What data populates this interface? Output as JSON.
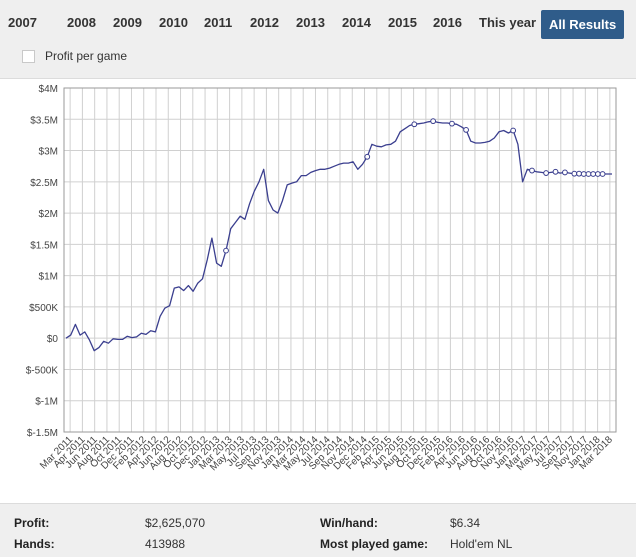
{
  "tabs": [
    {
      "label": "2007",
      "active": false
    },
    {
      "label": "2008",
      "active": false
    },
    {
      "label": "2009",
      "active": false
    },
    {
      "label": "2010",
      "active": false
    },
    {
      "label": "2011",
      "active": false
    },
    {
      "label": "2012",
      "active": false
    },
    {
      "label": "2013",
      "active": false
    },
    {
      "label": "2014",
      "active": false
    },
    {
      "label": "2015",
      "active": false
    },
    {
      "label": "2016",
      "active": false
    },
    {
      "label": "This year",
      "active": false
    },
    {
      "label": "All Results",
      "active": true
    }
  ],
  "profit_per_game": {
    "label": "Profit per game",
    "checked": false
  },
  "colors": {
    "accent": "#2f5c8a",
    "line": "#3b3f8f",
    "grid": "#d0d0d0"
  },
  "chart_data": {
    "type": "line",
    "title": "",
    "xlabel": "",
    "ylabel": "",
    "grid": true,
    "y_ticks": [
      -1500000,
      -1000000,
      -500000,
      0,
      500000,
      1000000,
      1500000,
      2000000,
      2500000,
      3000000,
      3500000,
      4000000
    ],
    "y_tick_labels": [
      "$-1.5M",
      "$-1M",
      "$-500K",
      "$0",
      "$500K",
      "$1M",
      "$1.5M",
      "$2M",
      "$2.5M",
      "$3M",
      "$3.5M",
      "$4M"
    ],
    "ylim": [
      -1500000,
      4000000
    ],
    "x_tick_labels": [
      "Mar 2011",
      "Apr 2011",
      "Jun 2011",
      "Aug 2011",
      "Oct 2011",
      "Dec 2011",
      "Feb 2012",
      "Apr 2012",
      "Jun 2012",
      "Aug 2012",
      "Oct 2012",
      "Dec 2012",
      "Jan 2013",
      "Mar 2013",
      "May 2013",
      "Jul 2013",
      "Sep 2013",
      "Nov 2013",
      "Jan 2014",
      "Mar 2014",
      "May 2014",
      "Jul 2014",
      "Sep 2014",
      "Nov 2014",
      "Dec 2014",
      "Feb 2015",
      "Apr 2015",
      "Jun 2015",
      "Aug 2015",
      "Oct 2015",
      "Dec 2015",
      "Feb 2016",
      "Apr 2016",
      "Jun 2016",
      "Aug 2016",
      "Oct 2016",
      "Nov 2016",
      "Jan 2017",
      "Mar 2017",
      "May 2017",
      "Jul 2017",
      "Sep 2017",
      "Nov 2017",
      "Jan 2018",
      "Mar 2018"
    ],
    "series": [
      {
        "values": [
          0,
          50000,
          220000,
          50000,
          100000,
          -30000,
          -200000,
          -150000,
          -50000,
          -80000,
          -10000,
          -20000,
          -20000,
          30000,
          10000,
          20000,
          80000,
          60000,
          120000,
          100000,
          350000,
          480000,
          520000,
          800000,
          820000,
          760000,
          840000,
          750000,
          880000,
          950000,
          1250000,
          1600000,
          1200000,
          1150000,
          1400000,
          1750000,
          1850000,
          1950000,
          1900000,
          2150000,
          2350000,
          2500000,
          2700000,
          2200000,
          2050000,
          2000000,
          2200000,
          2450000,
          2480000,
          2500000,
          2600000,
          2600000,
          2650000,
          2680000,
          2700000,
          2700000,
          2720000,
          2750000,
          2780000,
          2800000,
          2800000,
          2820000,
          2700000,
          2780000,
          2900000,
          3100000,
          3070000,
          3060000,
          3090000,
          3100000,
          3150000,
          3300000,
          3350000,
          3400000,
          3420000,
          3430000,
          3440000,
          3460000,
          3470000,
          3450000,
          3440000,
          3440000,
          3430000,
          3420000,
          3380000,
          3330000,
          3150000,
          3120000,
          3120000,
          3130000,
          3150000,
          3200000,
          3300000,
          3320000,
          3280000,
          3320000,
          3100000,
          2500000,
          2700000,
          2680000,
          2660000,
          2650000,
          2640000,
          2650000,
          2660000,
          2640000,
          2650000,
          2640000,
          2630000,
          2630000,
          2625070,
          2625070,
          2625070,
          2625070,
          2625070,
          2625070,
          2625070
        ]
      }
    ]
  },
  "stats": {
    "profit_label": "Profit:",
    "profit_value": "$2,625,070",
    "hands_label": "Hands:",
    "hands_value": "413988",
    "winhand_label": "Win/hand:",
    "winhand_value": "$6.34",
    "mostplayed_label": "Most played game:",
    "mostplayed_value": "Hold'em NL"
  }
}
